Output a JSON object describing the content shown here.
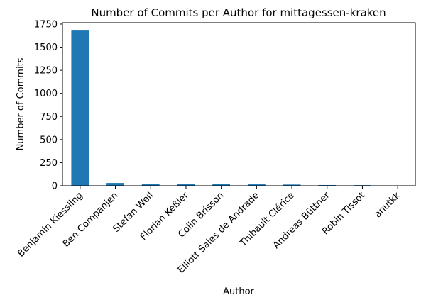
{
  "chart_data": {
    "type": "bar",
    "title": "Number of Commits per Author for mittagessen-kraken",
    "xlabel": "Author",
    "ylabel": "Number of Commits",
    "categories": [
      "Benjamin Kiessling",
      "Ben Companjen",
      "Stefan Weil",
      "Florian Keßler",
      "Colin Brisson",
      "Elliott Sales de Andrade",
      "Thibault Clérice",
      "Andreas Büttner",
      "Robin Tissot",
      "anutkk"
    ],
    "values": [
      1680,
      30,
      22,
      20,
      16,
      15,
      13,
      8,
      7,
      3
    ],
    "ylim": [
      0,
      1765
    ],
    "yticks": [
      0,
      250,
      500,
      750,
      1000,
      1250,
      1500,
      1750
    ],
    "grid": false,
    "legend": "none",
    "bar_color": "#1f77b4"
  }
}
